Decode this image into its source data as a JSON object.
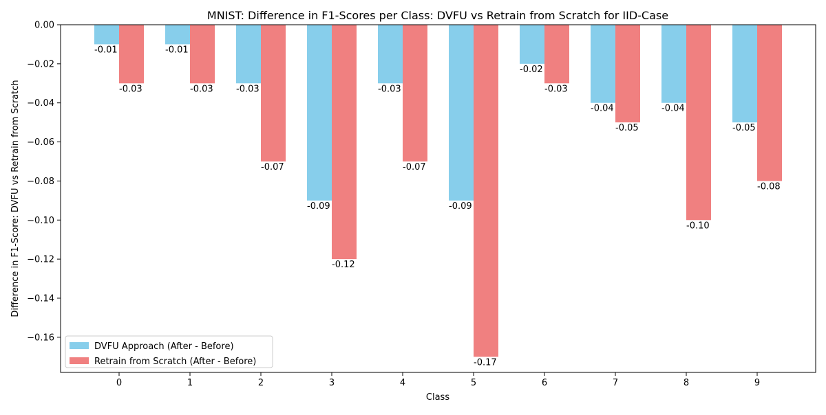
{
  "chart_data": {
    "type": "bar",
    "title": "MNIST: Difference in F1-Scores per Class: DVFU vs Retrain from Scratch for IID-Case",
    "xlabel": "Class",
    "ylabel": "Difference in F1-Score: DVFU vs Retrain from Scratch",
    "categories": [
      "0",
      "1",
      "2",
      "3",
      "4",
      "5",
      "6",
      "7",
      "8",
      "9"
    ],
    "ylim": [
      -0.178,
      0.0
    ],
    "yticks": [
      0.0,
      -0.02,
      -0.04,
      -0.06,
      -0.08,
      -0.1,
      -0.12,
      -0.14,
      -0.16
    ],
    "ytick_labels": [
      "0.00",
      "−0.02",
      "−0.04",
      "−0.06",
      "−0.08",
      "−0.10",
      "−0.12",
      "−0.14",
      "−0.16"
    ],
    "series": [
      {
        "name": "DVFU Approach (After - Before)",
        "color": "#87ceeb",
        "values": [
          -0.01,
          -0.01,
          -0.03,
          -0.09,
          -0.03,
          -0.09,
          -0.02,
          -0.04,
          -0.04,
          -0.05
        ],
        "labels": [
          "-0.01",
          "-0.01",
          "-0.03",
          "-0.09",
          "-0.03",
          "-0.09",
          "-0.02",
          "-0.04",
          "-0.04",
          "-0.05"
        ]
      },
      {
        "name": "Retrain from Scratch (After - Before)",
        "color": "#f08080",
        "values": [
          -0.03,
          -0.03,
          -0.07,
          -0.12,
          -0.07,
          -0.17,
          -0.03,
          -0.05,
          -0.1,
          -0.08
        ],
        "labels": [
          "-0.03",
          "-0.03",
          "-0.07",
          "-0.12",
          "-0.07",
          "-0.17",
          "-0.03",
          "-0.05",
          "-0.10",
          "-0.08"
        ]
      }
    ],
    "legend_position": "lower-left",
    "grid": false
  }
}
